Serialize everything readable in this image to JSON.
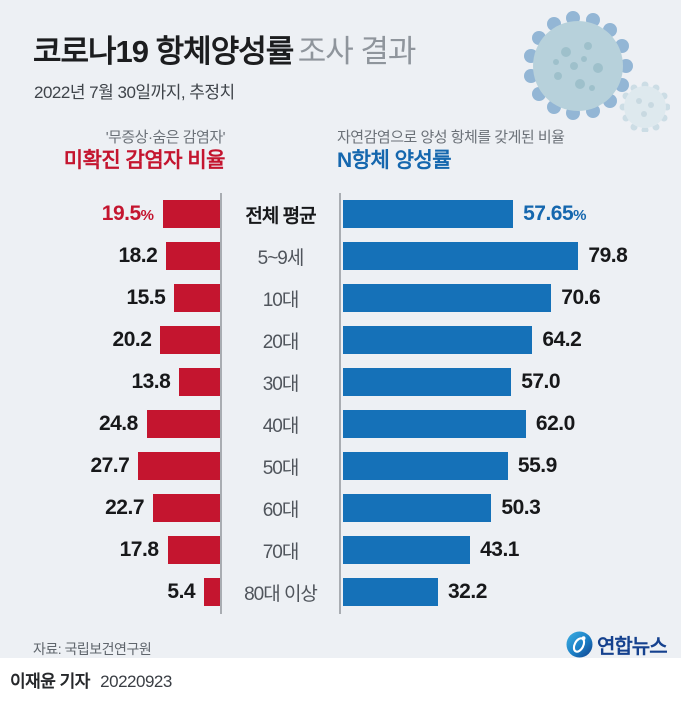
{
  "title": {
    "main": "코로나19 항체양성률",
    "sub": "조사 결과"
  },
  "subtitle": "2022년 7월 30일까지, 추정치",
  "left_header": {
    "caption": "'무증상·숨은 감염자'",
    "title": "미확진 감염자 비율"
  },
  "right_header": {
    "caption": "자연감염으로 양성 항체를 갖게된 비율",
    "title": "N항체 양성률"
  },
  "source": "자료: 국립보건연구원",
  "brand": {
    "name": "연합뉴스"
  },
  "credit": {
    "reporter": "이재윤 기자",
    "date": "20220923"
  },
  "colors": {
    "card_background": "#edf0f4",
    "red_bar": "#c4152f",
    "blue_bar": "#1571b8",
    "blue_header": "#1567ae",
    "axis_line": "#a9adb2",
    "brand_navy": "#15418e"
  },
  "chart_data": {
    "type": "bar",
    "orientation": "horizontal",
    "categories": [
      "전체 평균",
      "5~9세",
      "10대",
      "20대",
      "30대",
      "40대",
      "50대",
      "60대",
      "70대",
      "80대 이상"
    ],
    "series": [
      {
        "name": "미확진 감염자 비율",
        "side": "left",
        "color": "#c4152f",
        "unit": "%",
        "values": [
          19.5,
          18.2,
          15.5,
          20.2,
          13.8,
          24.8,
          27.7,
          22.7,
          17.8,
          5.4
        ],
        "labels": [
          "19.5",
          "18.2",
          "15.5",
          "20.2",
          "13.8",
          "24.8",
          "27.7",
          "22.7",
          "17.8",
          "5.4"
        ]
      },
      {
        "name": "N항체 양성률",
        "side": "right",
        "color": "#1571b8",
        "unit": "%",
        "values": [
          57.65,
          79.8,
          70.6,
          64.2,
          57.0,
          62.0,
          55.9,
          50.3,
          43.1,
          32.2
        ],
        "labels": [
          "57.65",
          "79.8",
          "70.6",
          "64.2",
          "57.0",
          "62.0",
          "55.9",
          "50.3",
          "43.1",
          "32.2"
        ]
      }
    ],
    "unit_shown": "first_row_only",
    "xlim": [
      0,
      80
    ],
    "grid": false,
    "legend_position": "column_headers",
    "value_labels_shown": true
  }
}
